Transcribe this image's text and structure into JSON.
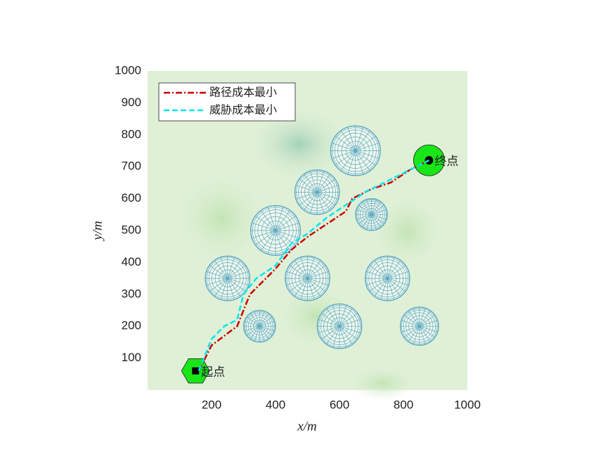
{
  "chart_data": {
    "type": "line",
    "xlabel": "x/m",
    "ylabel": "y/m",
    "xlim": [
      0,
      1000
    ],
    "ylim": [
      0,
      1000
    ],
    "xticks": [
      200,
      400,
      600,
      800,
      1000
    ],
    "yticks": [
      100,
      200,
      300,
      400,
      500,
      600,
      700,
      800,
      900,
      1000
    ],
    "x": [],
    "series": [
      {
        "name": "路径成本最小",
        "color": "#cc0000",
        "x": [
          160,
          200,
          240,
          280,
          320,
          360,
          400,
          450,
          500,
          560,
          620,
          640,
          700,
          760,
          820,
          880
        ],
        "values": [
          60,
          140,
          170,
          200,
          300,
          340,
          380,
          440,
          480,
          520,
          560,
          600,
          630,
          650,
          690,
          720
        ]
      },
      {
        "name": "威胁成本最小",
        "color": "#00e5ee",
        "x": [
          160,
          200,
          240,
          280,
          300,
          340,
          400,
          450,
          500,
          560,
          620,
          680,
          760,
          880
        ],
        "values": [
          60,
          160,
          200,
          220,
          300,
          350,
          390,
          460,
          490,
          540,
          580,
          620,
          660,
          720
        ]
      }
    ],
    "obstacles": {
      "x": [
        650,
        530,
        400,
        700,
        250,
        500,
        750,
        350,
        600,
        850
      ],
      "y": [
        750,
        620,
        500,
        550,
        350,
        350,
        350,
        200,
        200,
        200
      ],
      "r": [
        78,
        70,
        78,
        50,
        70,
        70,
        70,
        50,
        70,
        60
      ]
    },
    "start": {
      "x": 150,
      "y": 60,
      "label": "起点"
    },
    "goal": {
      "x": 880,
      "y": 720,
      "label": "终点"
    }
  }
}
